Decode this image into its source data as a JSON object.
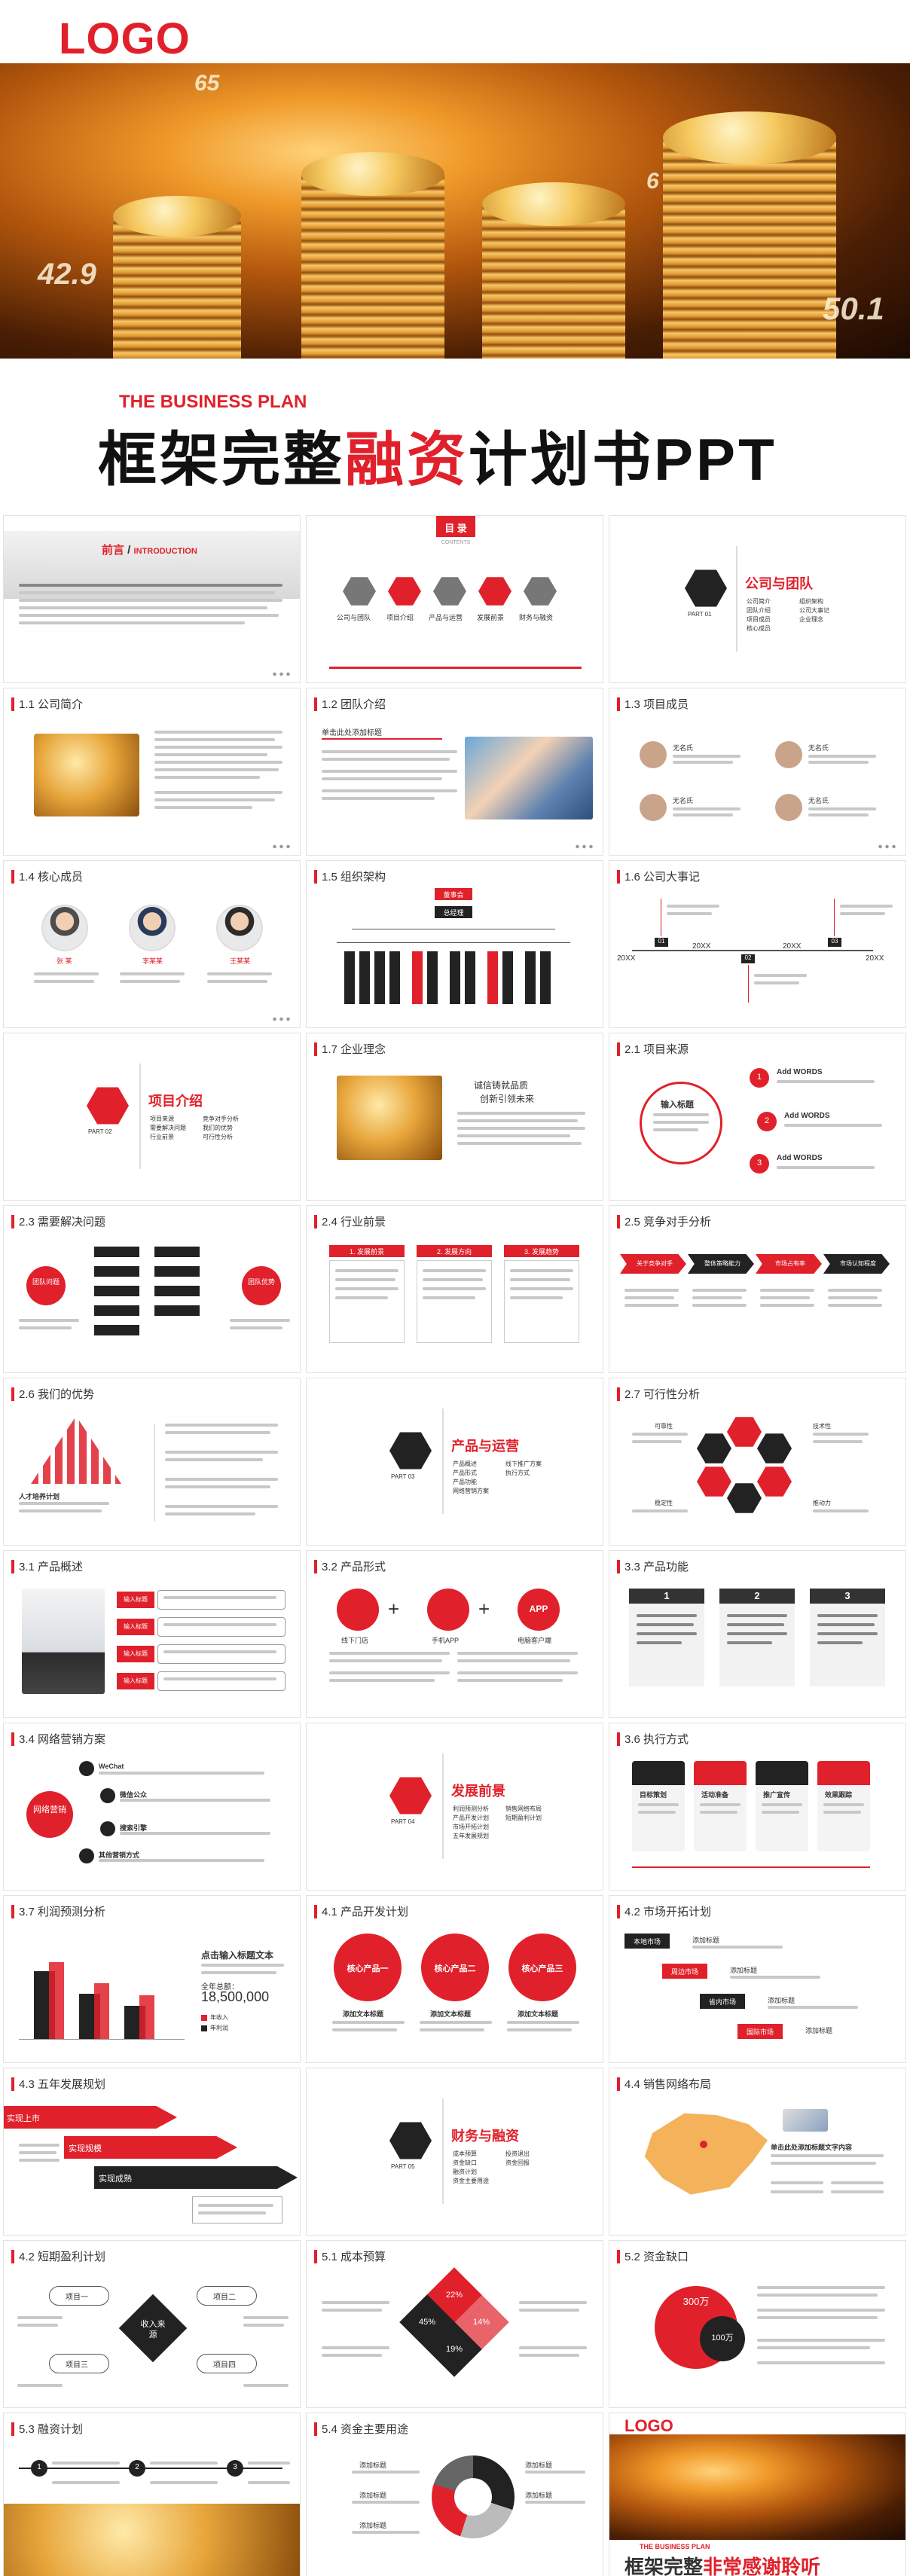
{
  "hero": {
    "logo": "LOGO",
    "numbers": [
      "65",
      "42.9",
      "50.1",
      "6"
    ],
    "subtitle_en": "THE BUSINESS PLAN",
    "title_part1": "框架完整",
    "title_red": "融资",
    "title_part2": "计划书PPT"
  },
  "slides": {
    "s1": {
      "title_cn": "前言",
      "title_en": "INTRODUCTION"
    },
    "s2": {
      "header": "目 录",
      "header_en": "CONTENTS",
      "items": [
        "公司与团队",
        "项目介绍",
        "产品与运营",
        "发展前景",
        "财务与融资"
      ]
    },
    "s3": {
      "part": "PART 01",
      "title": "公司与团队",
      "items": [
        "公司简介",
        "团队介绍",
        "项目成员",
        "核心成员",
        "组织架构",
        "公司大事记",
        "企业理念"
      ]
    },
    "s4": {
      "title": "1.1 公司简介"
    },
    "s5": {
      "title": "1.2 团队介绍",
      "heading": "单击此处添加标题"
    },
    "s6": {
      "title": "1.3 项目成员",
      "names": [
        "无名氏",
        "无名氏",
        "无名氏",
        "无名氏"
      ]
    },
    "s7": {
      "title": "1.4 核心成员",
      "names": [
        "张 某",
        "李某某",
        "王某某"
      ]
    },
    "s8": {
      "title": "1.5 组织架构",
      "top": "董事会",
      "second": "总经理"
    },
    "s9": {
      "title": "1.6 公司大事记",
      "years": [
        "20XX",
        "20XX",
        "20XX",
        "20XX"
      ],
      "months": [
        "01",
        "02",
        "03"
      ]
    },
    "s10": {
      "part": "PART 02",
      "title": "项目介绍",
      "items": [
        "项目来源",
        "需要解决问题",
        "行业前景",
        "竞争对手分析",
        "我们的优势",
        "可行性分析"
      ]
    },
    "s11": {
      "title": "1.7 企业理念",
      "line1": "诚信铸就品质",
      "line2": "创新引领未来"
    },
    "s12": {
      "title": "2.1 项目来源",
      "center": "输入标题",
      "items": [
        "Add WORDS",
        "Add WORDS",
        "Add WORDS"
      ],
      "nums": [
        "1",
        "2",
        "3"
      ]
    },
    "s13": {
      "title": "2.3 需要解决问题",
      "left": "团队问题",
      "right": "团队优势"
    },
    "s14": {
      "title": "2.4 行业前景",
      "tabs": [
        "1. 发展前景",
        "2. 发展方向",
        "3. 发展趋势"
      ]
    },
    "s15": {
      "title": "2.5 竞争对手分析",
      "arrows": [
        "关于竞争对手",
        "整体策略能力",
        "市场占有率",
        "市场认知程度"
      ]
    },
    "s16": {
      "title": "2.6 我们的优势",
      "label": "人才培养计划"
    },
    "s17": {
      "part": "PART 03",
      "title": "产品与运营",
      "items": [
        "产品概述",
        "产品形式",
        "产品功能",
        "网络营销方案",
        "线下推广方案",
        "执行方式"
      ]
    },
    "s18": {
      "title": "2.7 可行性分析",
      "labels": [
        "可靠性",
        "技术性",
        "稳定性",
        "推动力"
      ]
    },
    "s19": {
      "title": "3.1 产品概述",
      "tags": [
        "输入标题",
        "输入标题",
        "输入标题",
        "输入标题"
      ]
    },
    "s20": {
      "title": "3.2 产品形式",
      "labels": [
        "线下门店",
        "手机APP",
        "电脑客户端"
      ],
      "app": "APP"
    },
    "s21": {
      "title": "3.3 产品功能",
      "nums": [
        "1",
        "2",
        "3"
      ]
    },
    "s22": {
      "title": "3.4 网络营销方案",
      "center": "网络营销",
      "items": [
        "WeChat",
        "微信公众",
        "搜索引擎",
        "其他营销方式"
      ]
    },
    "s23": {
      "part": "PART 04",
      "title": "发展前景",
      "items": [
        "利润预测分析",
        "产品开发计划",
        "市场开拓计划",
        "五年发展规划",
        "销售网络布局",
        "短期盈利计划"
      ]
    },
    "s24": {
      "title": "3.6 执行方式",
      "labels": [
        "目标策划",
        "活动准备",
        "推广宣传",
        "效果跟踪"
      ]
    },
    "s25": {
      "title": "3.7 利润预测分析",
      "heading": "点击输入标题文本",
      "total_label": "全年总额：",
      "total": "18,500,000",
      "legend": [
        "年收入",
        "年利润"
      ]
    },
    "s26": {
      "title": "4.1 产品开发计划",
      "products": [
        "核心产品一",
        "核心产品二",
        "核心产品三"
      ],
      "sub": "添加文本标题"
    },
    "s27": {
      "title": "4.2 市场开拓计划",
      "steps": [
        "本地市场",
        "周边市场",
        "省内市场",
        "国际市场"
      ],
      "label": "添加标题"
    },
    "s28": {
      "title": "4.3 五年发展规划",
      "bars": [
        "实现上市",
        "实现规模",
        "实现成熟"
      ]
    },
    "s29": {
      "part": "PART 05",
      "title": "财务与融资",
      "items": [
        "成本预算",
        "资金缺口",
        "融资计划",
        "资金主要用途",
        "投资退出",
        "资金回报"
      ]
    },
    "s30": {
      "title": "4.4 销售网络布局",
      "heading": "单击此处添加标题文字内容"
    },
    "s31": {
      "title": "4.2 短期盈利计划",
      "center": "收入来源",
      "items": [
        "项目一",
        "项目二",
        "项目三",
        "项目四"
      ]
    },
    "s32": {
      "title": "5.1 成本预算",
      "pcts": [
        "22%",
        "45%",
        "19%",
        "14%"
      ]
    },
    "s33": {
      "title": "5.2 资金缺口",
      "a": "300万",
      "b": "100万"
    },
    "s34": {
      "title": "5.3 融资计划",
      "nums": [
        "1",
        "2",
        "3"
      ]
    },
    "s35": {
      "title": "5.4 资金主要用途",
      "label": "添加标题"
    },
    "s36": {
      "logo": "LOGO",
      "subtitle_en": "THE BUSINESS PLAN",
      "black": "框架完整",
      "red": "非常感谢聆听"
    }
  },
  "colors": {
    "accent": "#e0212b",
    "dark": "#222222",
    "orange": "#f06a1b"
  }
}
